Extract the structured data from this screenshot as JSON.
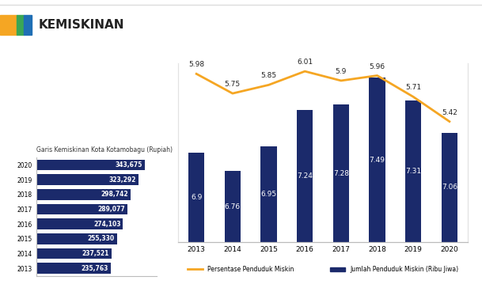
{
  "title": "KEMISKINAN",
  "chart_data": [
    {
      "type": "bar",
      "orientation": "horizontal",
      "title": "Garis Kemiskinan Kota Kotamobagu (Rupiah)",
      "categories": [
        "2020",
        "2019",
        "2018",
        "2017",
        "2016",
        "2015",
        "2014",
        "2013"
      ],
      "values": [
        343675,
        323292,
        298742,
        289077,
        274103,
        255330,
        237521,
        235763
      ],
      "value_labels": [
        "343,675",
        "323,292",
        "298,742",
        "289,077",
        "274,103",
        "255,330",
        "237,521",
        "235,763"
      ],
      "color": "#1b2a6b",
      "xlim": [
        0,
        380000
      ],
      "xticks": [],
      "data_labels": true,
      "tick_labels": "y"
    },
    {
      "type": "bar",
      "categories": [
        "2013",
        "2014",
        "2015",
        "2016",
        "2017",
        "2018",
        "2019",
        "2020"
      ],
      "ylim": [
        6.2,
        7.6
      ],
      "yticks": [],
      "y2lim": [
        4.0,
        6.1
      ],
      "y2ticks": [],
      "data_labels": true,
      "tick_labels": "x",
      "legend": "bottom",
      "series": [
        {
          "name": "Persentase Penduduk Miskin",
          "type": "line",
          "color": "#f5a623",
          "axis": "y2",
          "marker": "none",
          "values": [
            5.98,
            5.75,
            5.85,
            6.01,
            5.9,
            5.96,
            5.71,
            5.42
          ]
        },
        {
          "name": "Jumlah Penduduk Miskin (Ribu Jiwa)",
          "type": "bar",
          "color": "#1b2a6b",
          "values": [
            6.9,
            6.76,
            6.95,
            7.24,
            7.28,
            7.49,
            7.31,
            7.06
          ]
        }
      ]
    }
  ]
}
